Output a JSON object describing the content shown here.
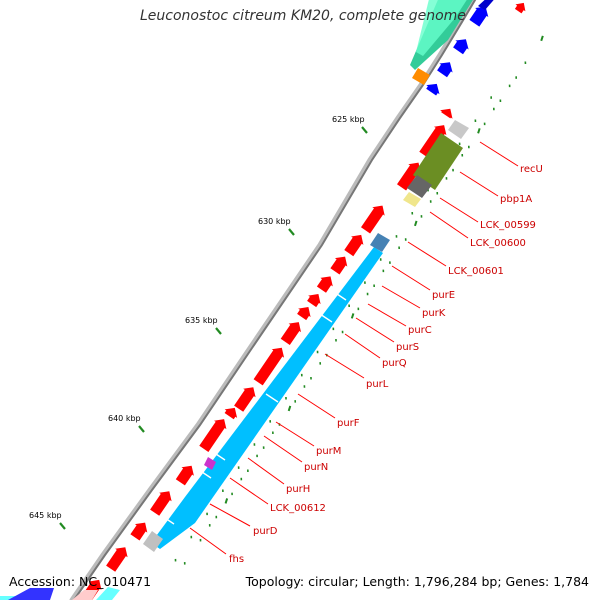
{
  "title": "Leuconostoc citreum KM20, complete genome",
  "footer": {
    "accession": "Accession: NC_010471",
    "topology": "Topology: circular; Length: 1,796,284 bp; Genes: 1,784"
  },
  "kbp_ticks": [
    "625 kbp",
    "630 kbp",
    "635 kbp",
    "640 kbp",
    "645 kbp"
  ],
  "gene_labels": [
    "recU",
    "pbp1A",
    "LCK_00599",
    "LCK_00600",
    "LCK_00601",
    "purE",
    "purK",
    "purC",
    "purS",
    "purQ",
    "purL",
    "purF",
    "purM",
    "purN",
    "purH",
    "LCK_00612",
    "purD",
    "fhs"
  ],
  "colors": {
    "forward_gene": "#ff0000",
    "reverse_gene": "#00bfff",
    "backbone": "#808080",
    "label": "#cc0000",
    "tick": "#228b22"
  }
}
